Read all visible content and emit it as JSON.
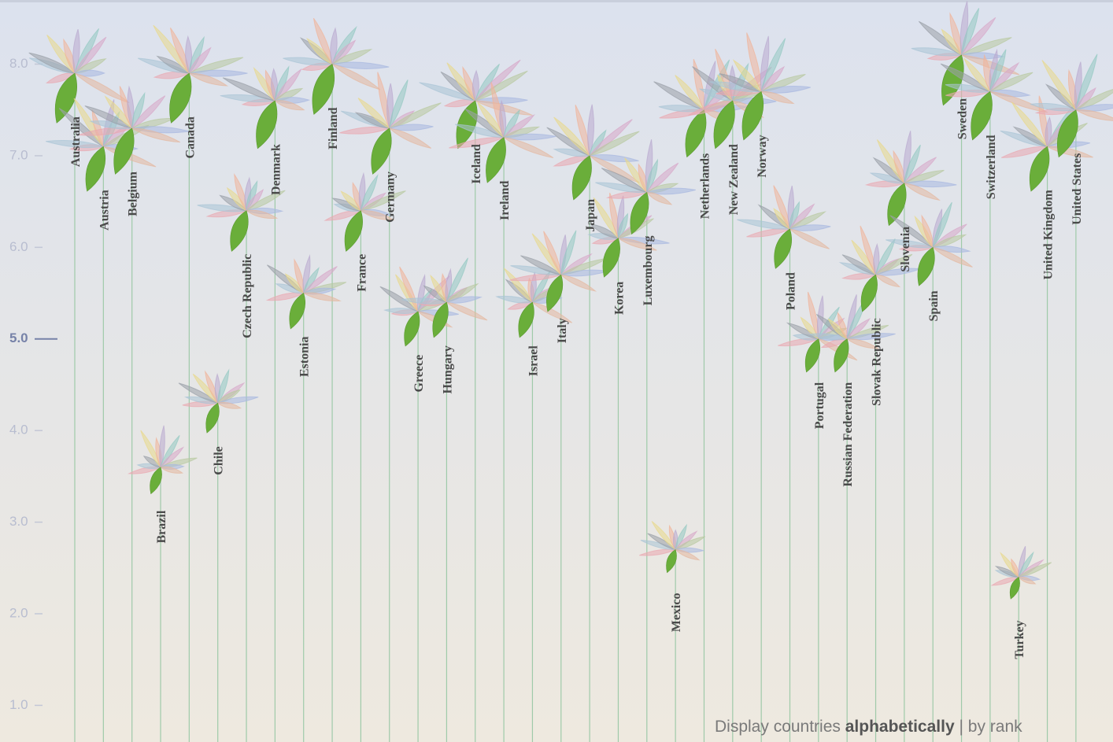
{
  "chart_data": {
    "type": "flower",
    "categories": [
      "Australia",
      "Austria",
      "Belgium",
      "Brazil",
      "Canada",
      "Chile",
      "Czech Republic",
      "Denmark",
      "Estonia",
      "Finland",
      "France",
      "Germany",
      "Greece",
      "Hungary",
      "Iceland",
      "Ireland",
      "Israel",
      "Italy",
      "Japan",
      "Korea",
      "Luxembourg",
      "Mexico",
      "Netherlands",
      "New Zealand",
      "Norway",
      "Poland",
      "Portugal",
      "Russian Federation",
      "Slovak Republic",
      "Slovenia",
      "Spain",
      "Sweden",
      "Switzerland",
      "Turkey",
      "United Kingdom",
      "United States"
    ],
    "values": [
      7.9,
      7.1,
      7.3,
      3.6,
      7.9,
      4.3,
      6.4,
      7.6,
      5.5,
      8.0,
      6.4,
      7.3,
      5.3,
      5.4,
      7.6,
      7.2,
      5.4,
      5.7,
      7.0,
      6.1,
      6.6,
      2.7,
      7.5,
      7.6,
      7.7,
      6.2,
      5.0,
      5.0,
      5.7,
      6.7,
      6.0,
      8.1,
      7.7,
      2.4,
      7.1,
      7.5
    ],
    "color": "#6aae3a",
    "ylim": [
      0.6,
      8.7
    ],
    "yticks": [
      {
        "value": 1,
        "label": "1.0"
      },
      {
        "value": 2,
        "label": "2.0"
      },
      {
        "value": 3,
        "label": "3.0"
      },
      {
        "value": 4,
        "label": "4.0"
      },
      {
        "value": 5,
        "label": "5.0"
      },
      {
        "value": 6,
        "label": "6.0"
      },
      {
        "value": 7,
        "label": "7.0"
      },
      {
        "value": 8,
        "label": "8.0"
      }
    ],
    "highlight_tick": 5
  },
  "sort_control": {
    "label": "Display countries",
    "options": [
      "alphabetically",
      "by rank"
    ],
    "separator": "|",
    "selected": 0
  }
}
